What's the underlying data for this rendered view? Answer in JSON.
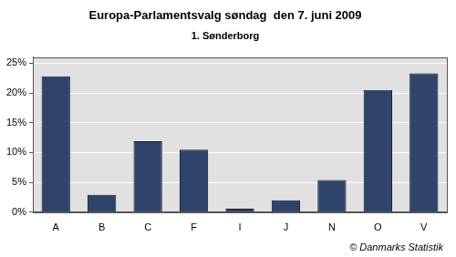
{
  "chart_data": {
    "type": "bar",
    "title": "Europa-Parlamentsvalg søndag  den 7. juni 2009",
    "subtitle": "1. Sønderborg",
    "annotations": [
      "© Danmarks Statistik"
    ],
    "categories": [
      "A",
      "B",
      "C",
      "F",
      "I",
      "J",
      "N",
      "O",
      "V"
    ],
    "values": [
      22.8,
      2.9,
      11.9,
      10.5,
      0.6,
      2.0,
      5.4,
      20.5,
      23.3
    ],
    "color": "#2f4468",
    "ylim": [
      0,
      26
    ],
    "yticks": [
      {
        "value": 0,
        "label": "0%"
      },
      {
        "value": 5,
        "label": "5%"
      },
      {
        "value": 10,
        "label": "10%"
      },
      {
        "value": 15,
        "label": "15%"
      },
      {
        "value": 20,
        "label": "20%"
      },
      {
        "value": 25,
        "label": "25%"
      }
    ],
    "grid": true
  }
}
